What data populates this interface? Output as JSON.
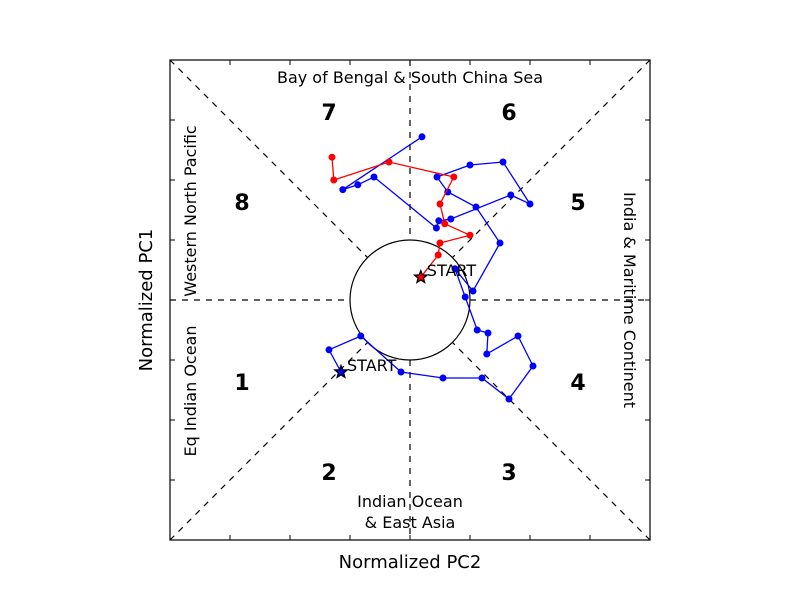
{
  "chart_data": {
    "type": "line",
    "title": "",
    "xlabel": "Normalized PC2",
    "ylabel": "Normalized PC1",
    "xlim": [
      -4,
      4
    ],
    "ylim": [
      -4,
      4
    ],
    "grid": false,
    "legend": "none",
    "phase_numbers": [
      "1",
      "2",
      "3",
      "4",
      "5",
      "6",
      "7",
      "8"
    ],
    "regions": {
      "top": "Bay of Bengal & South China Sea",
      "bottom_line1": "Indian Ocean",
      "bottom_line2": "& East Asia",
      "left_lower": "Eq Indian Ocean",
      "left_upper": "Western North Pacific",
      "right": "India & Maritime Continent"
    },
    "unit_circle_radius": 1,
    "series": [
      {
        "color": "#0000ff",
        "start_label": "START",
        "points": [
          [
            -1.15,
            -1.2
          ],
          [
            -1.35,
            -0.83
          ],
          [
            -0.82,
            -0.6
          ],
          [
            -0.15,
            -1.2
          ],
          [
            0.55,
            -1.3
          ],
          [
            1.2,
            -1.3
          ],
          [
            1.65,
            -1.65
          ],
          [
            2.05,
            -1.1
          ],
          [
            1.8,
            -0.6
          ],
          [
            1.28,
            -0.9
          ],
          [
            1.3,
            -0.55
          ],
          [
            1.12,
            -0.5
          ],
          [
            0.92,
            0.05
          ],
          [
            0.75,
            0.52
          ],
          [
            1.05,
            0.15
          ],
          [
            1.5,
            0.95
          ],
          [
            1.1,
            1.55
          ],
          [
            0.63,
            1.8
          ],
          [
            0.45,
            2.05
          ],
          [
            1.0,
            2.25
          ],
          [
            1.55,
            2.3
          ],
          [
            2.0,
            1.6
          ],
          [
            1.68,
            1.75
          ],
          [
            0.68,
            1.35
          ],
          [
            0.48,
            1.32
          ],
          [
            0.44,
            1.2
          ],
          [
            -0.6,
            2.05
          ],
          [
            -0.87,
            1.92
          ],
          [
            -1.12,
            1.84
          ],
          [
            0.2,
            2.72
          ]
        ]
      },
      {
        "color": "#ff0000",
        "start_label": "START",
        "points": [
          [
            0.18,
            0.38
          ],
          [
            0.47,
            0.75
          ],
          [
            0.5,
            0.95
          ],
          [
            1.0,
            1.08
          ],
          [
            0.58,
            1.27
          ],
          [
            0.5,
            1.6
          ],
          [
            0.73,
            2.05
          ],
          [
            -0.35,
            2.3
          ],
          [
            -1.27,
            2.0
          ],
          [
            -1.3,
            2.38
          ]
        ]
      }
    ]
  }
}
